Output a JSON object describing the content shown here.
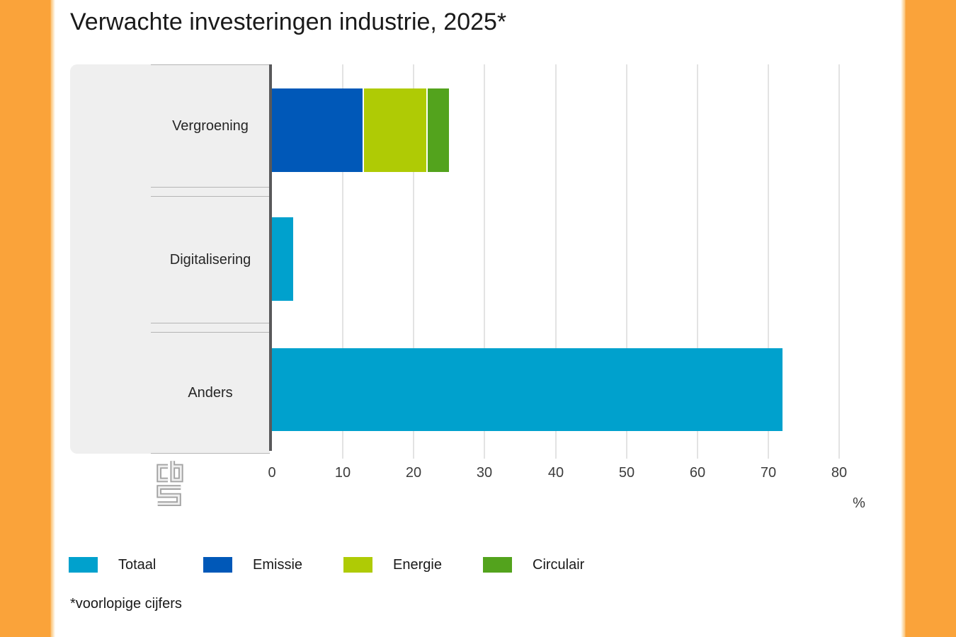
{
  "page": {
    "background": "#ffffff",
    "side_band_color": "#faa33a"
  },
  "branding": {
    "logo": "CBS"
  },
  "chart_data": {
    "type": "bar",
    "orientation": "horizontal",
    "title": "Verwachte investeringen industrie, 2025*",
    "categories": [
      "Vergroening",
      "Digitalisering",
      "Anders"
    ],
    "bars": [
      {
        "category": "Vergroening",
        "segments": [
          {
            "name": "Emissie",
            "value": 13
          },
          {
            "name": "Energie",
            "value": 9
          },
          {
            "name": "Circulair",
            "value": 3
          }
        ]
      },
      {
        "category": "Digitalisering",
        "segments": [
          {
            "name": "Totaal",
            "value": 3
          }
        ]
      },
      {
        "category": "Anders",
        "segments": [
          {
            "name": "Totaal",
            "value": 72
          }
        ]
      }
    ],
    "x_ticks": [
      0,
      10,
      20,
      30,
      40,
      50,
      60,
      70,
      80
    ],
    "xlim": [
      0,
      84
    ],
    "xlabel": "%",
    "grid": "vertical",
    "legend_position": "bottom",
    "colors": {
      "Totaal": "#00a1cd",
      "Emissie": "#0058b8",
      "Energie": "#afcb05",
      "Circulair": "#53a31d"
    }
  },
  "legend": {
    "items": [
      "Totaal",
      "Emissie",
      "Energie",
      "Circulair"
    ]
  },
  "footer": {
    "note": "*voorlopige cijfers"
  }
}
